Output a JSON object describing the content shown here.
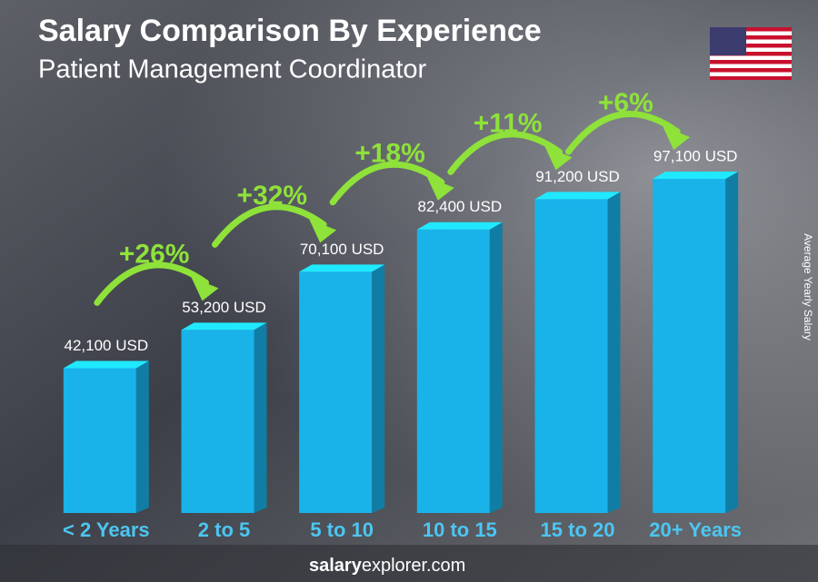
{
  "chart_data": {
    "type": "bar",
    "title": "Salary Comparison By Experience",
    "subtitle": "Patient Management Coordinator",
    "y_label": "Average Yearly Salary",
    "categories": [
      "< 2 Years",
      "2 to 5",
      "5 to 10",
      "10 to 15",
      "15 to 20",
      "20+ Years"
    ],
    "values": [
      42100,
      53200,
      70100,
      82400,
      91200,
      97100
    ],
    "value_labels": [
      "42,100 USD",
      "53,200 USD",
      "70,100 USD",
      "82,400 USD",
      "91,200 USD",
      "97,100 USD"
    ],
    "changes": [
      "+26%",
      "+32%",
      "+18%",
      "+11%",
      "+6%"
    ],
    "color": "#19b3ea",
    "change_color": "#8ee23a",
    "footer": [
      "salary",
      "explorer.com"
    ]
  }
}
